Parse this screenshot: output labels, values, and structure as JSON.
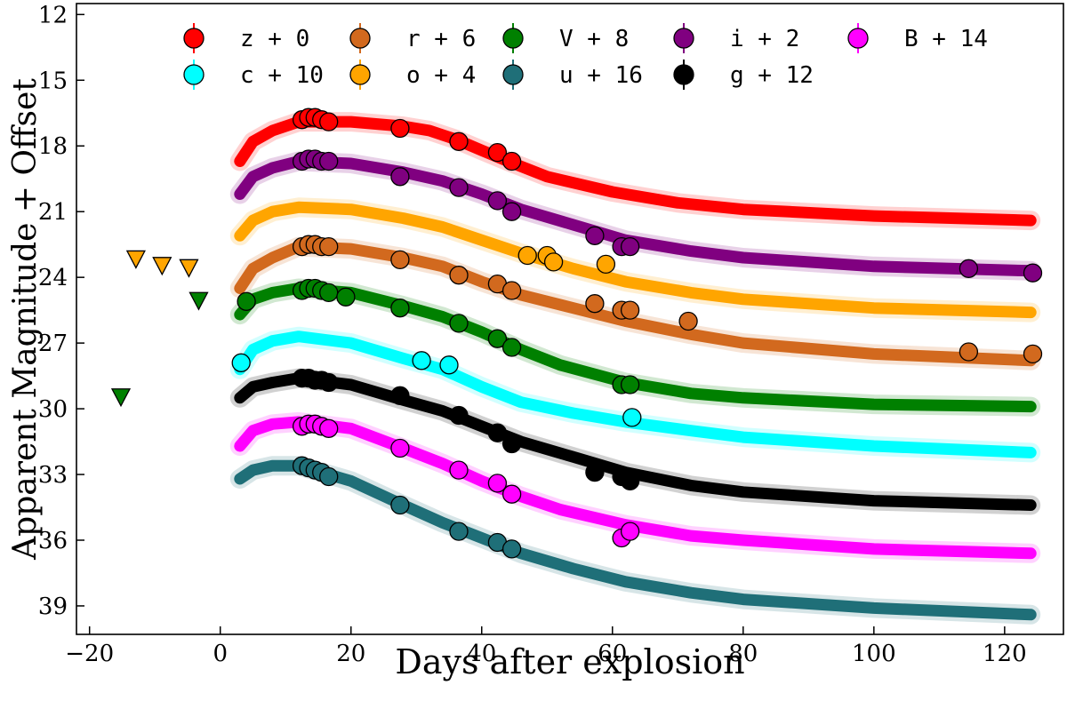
{
  "chart_data": {
    "type": "line",
    "title": "",
    "xlabel": "Days after explosion",
    "ylabel": "Apparent Magnitude + Offset",
    "xlim": [
      -22,
      129
    ],
    "ylim": [
      40.3,
      11.5
    ],
    "y_inverted": true,
    "xticks": [
      -20,
      0,
      20,
      40,
      60,
      80,
      100,
      120
    ],
    "xtick_labels": [
      "−20",
      "0",
      "20",
      "40",
      "60",
      "80",
      "100",
      "120"
    ],
    "yticks": [
      12,
      15,
      18,
      21,
      24,
      27,
      30,
      33,
      36,
      39
    ],
    "ytick_labels": [
      "12",
      "15",
      "18",
      "21",
      "24",
      "27",
      "30",
      "33",
      "36",
      "39"
    ],
    "legend": "top",
    "legend_order": [
      "z",
      "r",
      "V",
      "i",
      "B",
      "c",
      "o",
      "u",
      "g"
    ],
    "series": [
      {
        "name": "z",
        "label": "z + 0",
        "color": "#ff0000",
        "offset": 0,
        "curve": [
          [
            3,
            18.7
          ],
          [
            5,
            17.8
          ],
          [
            8,
            17.3
          ],
          [
            12,
            16.9
          ],
          [
            20,
            16.9
          ],
          [
            28,
            17.1
          ],
          [
            32,
            17.3
          ],
          [
            36,
            17.7
          ],
          [
            40,
            18.2
          ],
          [
            44,
            18.7
          ],
          [
            50,
            19.4
          ],
          [
            60,
            20.1
          ],
          [
            70,
            20.6
          ],
          [
            80,
            20.9
          ],
          [
            100,
            21.2
          ],
          [
            124,
            21.4
          ]
        ],
        "points": [
          [
            12.5,
            16.8
          ],
          [
            13.5,
            16.7
          ],
          [
            14.5,
            16.7
          ],
          [
            15.5,
            16.8
          ],
          [
            16.6,
            16.9
          ],
          [
            27.5,
            17.2
          ],
          [
            36.5,
            17.8
          ],
          [
            42.4,
            18.3
          ],
          [
            44.6,
            18.7
          ]
        ],
        "upper_limits": []
      },
      {
        "name": "r",
        "label": "r + 6",
        "color": "#d2691e",
        "offset": 6,
        "curve": [
          [
            3,
            24.5
          ],
          [
            5,
            23.6
          ],
          [
            8,
            23.1
          ],
          [
            12,
            22.6
          ],
          [
            20,
            22.7
          ],
          [
            28,
            23.1
          ],
          [
            34,
            23.5
          ],
          [
            40,
            24.2
          ],
          [
            46,
            24.8
          ],
          [
            54,
            25.4
          ],
          [
            62,
            26.0
          ],
          [
            72,
            26.6
          ],
          [
            80,
            27.0
          ],
          [
            100,
            27.5
          ],
          [
            124,
            27.8
          ]
        ],
        "points": [
          [
            12.5,
            22.6
          ],
          [
            13.5,
            22.5
          ],
          [
            14.5,
            22.5
          ],
          [
            15.5,
            22.6
          ],
          [
            16.6,
            22.6
          ],
          [
            27.5,
            23.2
          ],
          [
            36.5,
            23.9
          ],
          [
            42.4,
            24.3
          ],
          [
            44.6,
            24.6
          ],
          [
            57.3,
            25.2
          ],
          [
            61.4,
            25.5
          ],
          [
            62.7,
            25.5
          ],
          [
            71.6,
            26.0
          ],
          [
            114.5,
            27.4
          ],
          [
            124.3,
            27.5
          ]
        ],
        "upper_limits": []
      },
      {
        "name": "V",
        "label": "V + 8",
        "color": "#008000",
        "offset": 8,
        "curve": [
          [
            3,
            25.7
          ],
          [
            5,
            25.0
          ],
          [
            8,
            24.7
          ],
          [
            12,
            24.5
          ],
          [
            20,
            24.7
          ],
          [
            28,
            25.3
          ],
          [
            34,
            25.8
          ],
          [
            40,
            26.5
          ],
          [
            46,
            27.3
          ],
          [
            52,
            28.0
          ],
          [
            62,
            28.8
          ],
          [
            72,
            29.3
          ],
          [
            80,
            29.5
          ],
          [
            100,
            29.8
          ],
          [
            124,
            29.9
          ]
        ],
        "points": [
          [
            4,
            25.1
          ],
          [
            12.5,
            24.6
          ],
          [
            13.5,
            24.5
          ],
          [
            14.5,
            24.5
          ],
          [
            15.5,
            24.6
          ],
          [
            16.6,
            24.7
          ],
          [
            19.2,
            24.9
          ],
          [
            27.5,
            25.4
          ],
          [
            36.5,
            26.1
          ],
          [
            42.4,
            26.8
          ],
          [
            44.6,
            27.2
          ],
          [
            61.4,
            28.9
          ],
          [
            62.7,
            28.9
          ]
        ],
        "upper_limits": [
          [
            -15.2,
            29.5
          ],
          [
            -3.3,
            25.1
          ]
        ]
      },
      {
        "name": "i",
        "label": "i + 2",
        "color": "#800080",
        "offset": 2,
        "curve": [
          [
            3,
            20.2
          ],
          [
            5,
            19.4
          ],
          [
            8,
            19.0
          ],
          [
            12,
            18.7
          ],
          [
            20,
            18.8
          ],
          [
            28,
            19.2
          ],
          [
            34,
            19.6
          ],
          [
            40,
            20.2
          ],
          [
            46,
            20.9
          ],
          [
            54,
            21.6
          ],
          [
            62,
            22.3
          ],
          [
            72,
            22.8
          ],
          [
            80,
            23.1
          ],
          [
            100,
            23.5
          ],
          [
            124,
            23.7
          ]
        ],
        "points": [
          [
            12.5,
            18.7
          ],
          [
            13.5,
            18.6
          ],
          [
            14.5,
            18.6
          ],
          [
            15.5,
            18.7
          ],
          [
            16.6,
            18.7
          ],
          [
            27.5,
            19.4
          ],
          [
            36.5,
            19.9
          ],
          [
            42.4,
            20.5
          ],
          [
            44.6,
            21.0
          ],
          [
            57.3,
            22.1
          ],
          [
            61.4,
            22.6
          ],
          [
            62.7,
            22.6
          ],
          [
            114.5,
            23.6
          ],
          [
            124.3,
            23.8
          ]
        ],
        "upper_limits": []
      },
      {
        "name": "B",
        "label": "B + 14",
        "color": "#ff00ff",
        "offset": 14,
        "curve": [
          [
            3,
            31.7
          ],
          [
            5,
            31.0
          ],
          [
            8,
            30.7
          ],
          [
            12,
            30.6
          ],
          [
            20,
            30.9
          ],
          [
            28,
            31.8
          ],
          [
            34,
            32.5
          ],
          [
            40,
            33.3
          ],
          [
            46,
            34.0
          ],
          [
            52,
            34.6
          ],
          [
            62,
            35.3
          ],
          [
            72,
            35.8
          ],
          [
            80,
            36.0
          ],
          [
            100,
            36.4
          ],
          [
            124,
            36.6
          ]
        ],
        "points": [
          [
            12.5,
            30.8
          ],
          [
            13.5,
            30.7
          ],
          [
            14.5,
            30.7
          ],
          [
            15.5,
            30.8
          ],
          [
            16.6,
            30.9
          ],
          [
            27.5,
            31.8
          ],
          [
            36.5,
            32.8
          ],
          [
            42.4,
            33.4
          ],
          [
            44.6,
            33.9
          ],
          [
            61.4,
            35.9
          ],
          [
            62.7,
            35.6
          ]
        ],
        "upper_limits": []
      },
      {
        "name": "c",
        "label": "c + 10",
        "color": "#00ffff",
        "offset": 10,
        "curve": [
          [
            3,
            28.2
          ],
          [
            5,
            27.3
          ],
          [
            8,
            26.9
          ],
          [
            12,
            26.7
          ],
          [
            20,
            27.0
          ],
          [
            28,
            27.7
          ],
          [
            34,
            28.2
          ],
          [
            40,
            29.0
          ],
          [
            46,
            29.7
          ],
          [
            54,
            30.2
          ],
          [
            62,
            30.6
          ],
          [
            72,
            31.0
          ],
          [
            80,
            31.3
          ],
          [
            100,
            31.7
          ],
          [
            124,
            32.0
          ]
        ],
        "points": [
          [
            3.2,
            27.9
          ],
          [
            30.8,
            27.8
          ],
          [
            35.0,
            28.0
          ],
          [
            63.0,
            30.4
          ]
        ],
        "upper_limits": []
      },
      {
        "name": "o",
        "label": "o + 4",
        "color": "#ffa500",
        "offset": 4,
        "curve": [
          [
            3,
            22.1
          ],
          [
            5,
            21.4
          ],
          [
            8,
            21.0
          ],
          [
            12,
            20.8
          ],
          [
            20,
            20.9
          ],
          [
            28,
            21.3
          ],
          [
            34,
            21.7
          ],
          [
            40,
            22.3
          ],
          [
            46,
            22.9
          ],
          [
            54,
            23.6
          ],
          [
            62,
            24.2
          ],
          [
            72,
            24.7
          ],
          [
            80,
            25.0
          ],
          [
            100,
            25.4
          ],
          [
            124,
            25.6
          ]
        ],
        "points": [
          [
            47.0,
            23.0
          ],
          [
            50.0,
            23.0
          ],
          [
            51.0,
            23.3
          ],
          [
            59.0,
            23.4
          ]
        ],
        "upper_limits": [
          [
            -12.9,
            23.2
          ],
          [
            -8.9,
            23.5
          ],
          [
            -4.8,
            23.6
          ]
        ]
      },
      {
        "name": "u",
        "label": "u + 16",
        "color": "#1f6f78",
        "offset": 16,
        "curve": [
          [
            3,
            33.2
          ],
          [
            5,
            32.8
          ],
          [
            8,
            32.6
          ],
          [
            12,
            32.6
          ],
          [
            20,
            33.3
          ],
          [
            28,
            34.4
          ],
          [
            34,
            35.2
          ],
          [
            40,
            35.9
          ],
          [
            46,
            36.6
          ],
          [
            54,
            37.3
          ],
          [
            62,
            37.9
          ],
          [
            72,
            38.4
          ],
          [
            80,
            38.7
          ],
          [
            100,
            39.1
          ],
          [
            124,
            39.4
          ]
        ],
        "points": [
          [
            12.5,
            32.6
          ],
          [
            13.5,
            32.7
          ],
          [
            14.5,
            32.8
          ],
          [
            15.5,
            32.9
          ],
          [
            16.6,
            33.1
          ],
          [
            27.5,
            34.4
          ],
          [
            36.5,
            35.6
          ],
          [
            42.4,
            36.1
          ],
          [
            44.6,
            36.4
          ]
        ],
        "upper_limits": []
      },
      {
        "name": "g",
        "label": "g + 12",
        "color": "#000000",
        "offset": 12,
        "curve": [
          [
            3,
            29.5
          ],
          [
            5,
            29.0
          ],
          [
            8,
            28.8
          ],
          [
            12,
            28.6
          ],
          [
            20,
            28.9
          ],
          [
            28,
            29.6
          ],
          [
            34,
            30.1
          ],
          [
            40,
            30.8
          ],
          [
            46,
            31.5
          ],
          [
            54,
            32.2
          ],
          [
            62,
            32.9
          ],
          [
            72,
            33.5
          ],
          [
            80,
            33.8
          ],
          [
            100,
            34.2
          ],
          [
            124,
            34.4
          ]
        ],
        "points": [
          [
            12.5,
            28.6
          ],
          [
            13.5,
            28.6
          ],
          [
            14.5,
            28.7
          ],
          [
            15.5,
            28.7
          ],
          [
            16.6,
            28.8
          ],
          [
            27.5,
            29.4
          ],
          [
            36.5,
            30.3
          ],
          [
            42.4,
            31.1
          ],
          [
            44.6,
            31.6
          ],
          [
            57.3,
            32.9
          ],
          [
            61.4,
            33.1
          ],
          [
            62.7,
            33.3
          ]
        ],
        "upper_limits": []
      }
    ]
  }
}
